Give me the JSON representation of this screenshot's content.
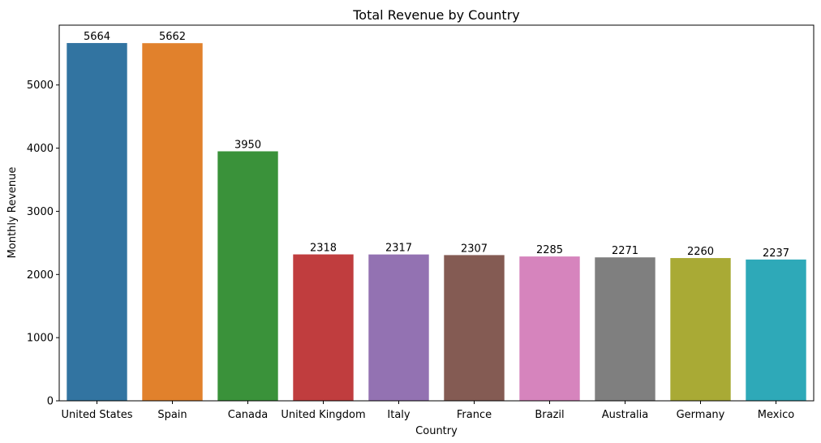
{
  "chart_data": {
    "type": "bar",
    "title": "Total Revenue by Country",
    "xlabel": "Country",
    "ylabel": "Monthly Revenue",
    "categories": [
      "United States",
      "Spain",
      "Canada",
      "United Kingdom",
      "Italy",
      "France",
      "Brazil",
      "Australia",
      "Germany",
      "Mexico"
    ],
    "values": [
      5664,
      5662,
      3950,
      2318,
      2317,
      2307,
      2285,
      2271,
      2260,
      2237
    ],
    "value_labels": [
      "5664",
      "5662",
      "3950",
      "2318",
      "2317",
      "2307",
      "2285",
      "2271",
      "2260",
      "2237"
    ],
    "yticks": [
      0,
      1000,
      2000,
      3000,
      4000,
      5000
    ],
    "ytick_labels": [
      "0",
      "1000",
      "2000",
      "3000",
      "4000",
      "5000"
    ],
    "ylim": [
      0,
      5947.2
    ],
    "grid": false,
    "legend": "none",
    "colors": [
      "#3274a1",
      "#e1812c",
      "#3a923a",
      "#c03d3e",
      "#9372b2",
      "#845b53",
      "#d684bd",
      "#7f7f7f",
      "#a9aa35",
      "#2ea9b8"
    ]
  }
}
